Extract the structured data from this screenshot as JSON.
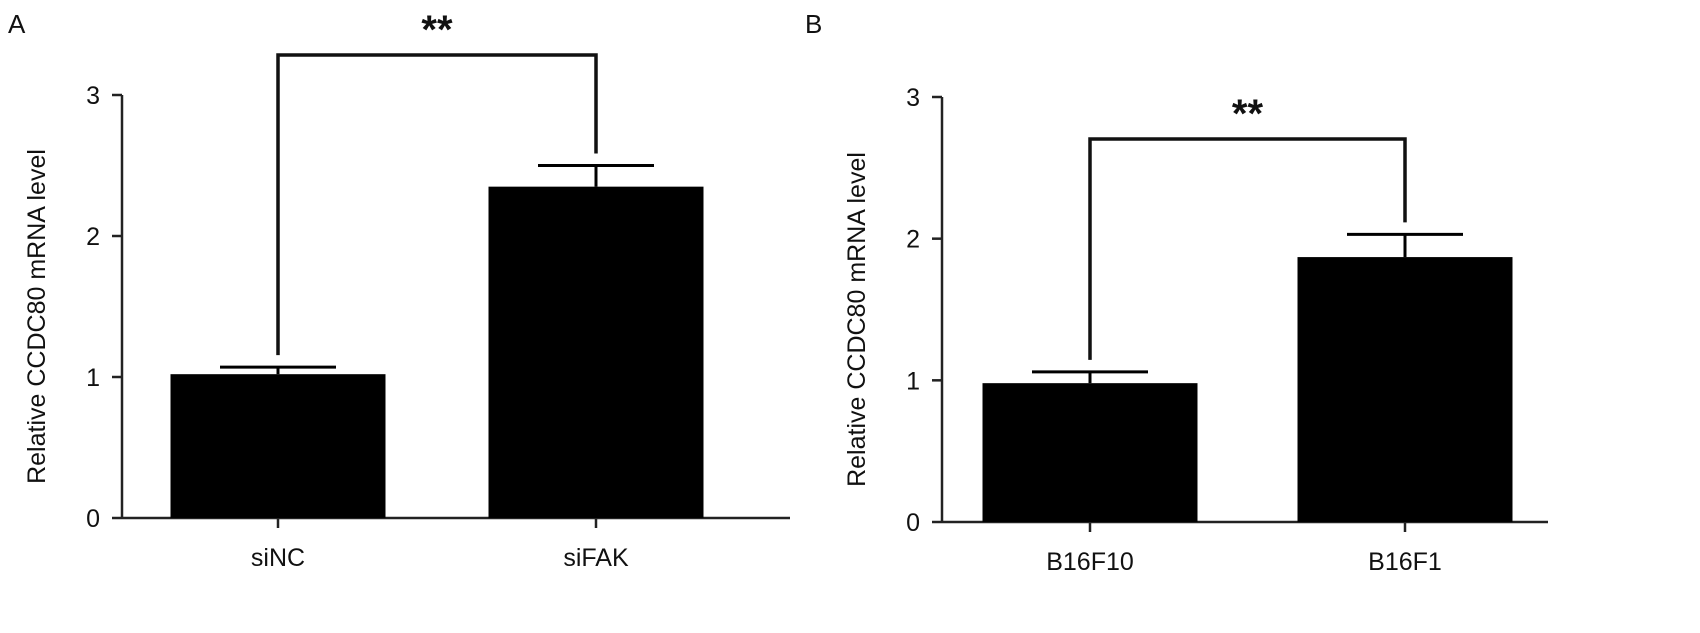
{
  "chart_data": [
    {
      "type": "bar",
      "panel_label": "A",
      "categories": [
        "siNC",
        "siFAK"
      ],
      "values": [
        1.02,
        2.35
      ],
      "errors": [
        0.05,
        0.15
      ],
      "ylabel": "Relative CCDC80 mRNA level",
      "ylim": [
        0,
        3
      ],
      "yticks": [
        "0",
        "1",
        "2",
        "3"
      ],
      "significance": {
        "between": [
          0,
          1
        ],
        "label": "**"
      },
      "bar_color": "#000000",
      "grid": false
    },
    {
      "type": "bar",
      "panel_label": "B",
      "categories": [
        "B16F10",
        "B16F1"
      ],
      "values": [
        0.98,
        1.87
      ],
      "errors": [
        0.08,
        0.16
      ],
      "ylabel": "Relative CCDC80 mRNA level",
      "ylim": [
        0,
        3
      ],
      "yticks": [
        "0",
        "1",
        "2",
        "3"
      ],
      "significance": {
        "between": [
          0,
          1
        ],
        "label": "**"
      },
      "bar_color": "#000000",
      "grid": false
    }
  ]
}
